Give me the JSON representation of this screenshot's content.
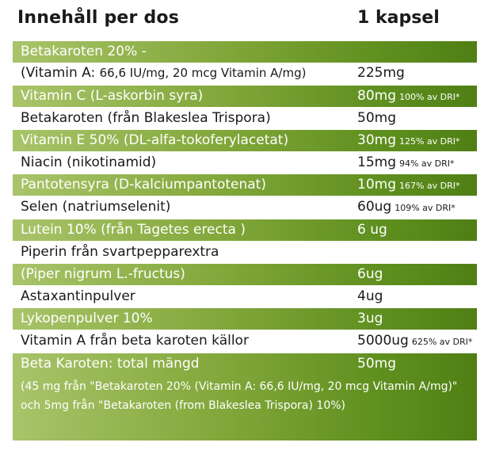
{
  "header": {
    "col1": "Innehåll per dos",
    "col2": "1 kapsel"
  },
  "rows": [
    {
      "name": "Betakaroten 20% -",
      "amount": "",
      "dri": ""
    },
    {
      "name": "(Vitamin A: ",
      "name_small": "66,6 IU/mg, 20 mcg Vitamin A/mg)",
      "amount": "225mg",
      "dri": ""
    },
    {
      "name": "Vitamin C (L-askorbin syra)",
      "amount": "80mg",
      "dri": "100% av DRI*"
    },
    {
      "name": "Betakaroten (från Blakeslea Trispora)",
      "amount": "50mg",
      "dri": ""
    },
    {
      "name": "Vitamin E 50% (DL-alfa-tokoferylacetat)",
      "amount": "30mg",
      "dri": "125% av DRI*"
    },
    {
      "name": "Niacin (nikotinamid)",
      "amount": "15mg",
      "dri": "94% av DRI*"
    },
    {
      "name": "Pantotensyra (D-kalciumpantotenat)",
      "amount": "10mg",
      "dri": "167% av DRI*"
    },
    {
      "name": "Selen (natriumselenit)",
      "amount": "60ug",
      "dri": "109% av DRI*"
    },
    {
      "name": "Lutein 10% (från Tagetes erecta )",
      "amount": "6 ug",
      "dri": ""
    },
    {
      "name": "Piperin från svartpepparextra",
      "amount": "",
      "dri": ""
    },
    {
      "name": "(Piper nigrum L.-fructus)",
      "amount": "6ug",
      "dri": ""
    },
    {
      "name": "Astaxantinpulver",
      "amount": "4ug",
      "dri": ""
    },
    {
      "name": "Lykopenpulver 10%",
      "amount": "3ug",
      "dri": ""
    },
    {
      "name": "Vitamin A från beta karoten källor",
      "amount": "5000ug",
      "dri": "625% av DRI*"
    },
    {
      "name": "Beta Karoten: total mängd",
      "amount": "50mg",
      "dri": ""
    }
  ],
  "footnote": "(45 mg från \"Betakaroten 20% (Vitamin A: 66,6 IU/mg, 20 mcg Vitamin A/mg)\" och 5mg från \"Betakaroten (from Blakeslea Trispora) 10%)",
  "colors": {
    "green_light": "#a9c46a",
    "green_dark": "#4f7f14",
    "text": "#1a1a1a"
  }
}
